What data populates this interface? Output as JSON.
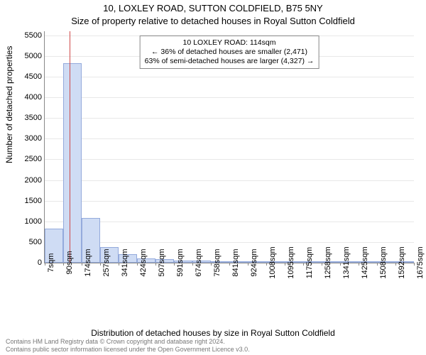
{
  "title_line1": "10, LOXLEY ROAD, SUTTON COLDFIELD, B75 5NY",
  "title_line2": "Size of property relative to detached houses in Royal Sutton Coldfield",
  "y_axis_label": "Number of detached properties",
  "x_axis_label": "Distribution of detached houses by size in Royal Sutton Coldfield",
  "footer_line1": "Contains HM Land Registry data © Crown copyright and database right 2024.",
  "footer_line2": "Contains public sector information licensed under the Open Government Licence v3.0.",
  "chart": {
    "type": "histogram",
    "background_color": "#ffffff",
    "grid_color": "#e8e8e8",
    "axis_color": "#888888",
    "bar_fill": "#cfdcf4",
    "bar_stroke": "rgba(100,130,200,0.55)",
    "marker_color": "#d04a4a",
    "x_ticks": [
      "7sqm",
      "90sqm",
      "174sqm",
      "257sqm",
      "341sqm",
      "424sqm",
      "507sqm",
      "591sqm",
      "674sqm",
      "758sqm",
      "841sqm",
      "924sqm",
      "1008sqm",
      "1095sqm",
      "1175sqm",
      "1258sqm",
      "1341sqm",
      "1425sqm",
      "1508sqm",
      "1592sqm",
      "1675sqm"
    ],
    "y_max": 5600,
    "y_ticks": [
      0,
      500,
      1000,
      1500,
      2000,
      2500,
      3000,
      3500,
      4000,
      4500,
      5000,
      5500
    ],
    "bars": [
      820,
      4820,
      1080,
      370,
      200,
      105,
      80,
      55,
      50,
      30,
      25,
      12,
      10,
      8,
      5,
      5,
      3,
      3,
      2,
      2
    ],
    "marker_index": 1.35,
    "callout": {
      "line1": "10 LOXLEY ROAD: 114sqm",
      "line2": "← 36% of detached houses are smaller (2,471)",
      "line3": "63% of semi-detached houses are larger (4,327) →"
    }
  }
}
